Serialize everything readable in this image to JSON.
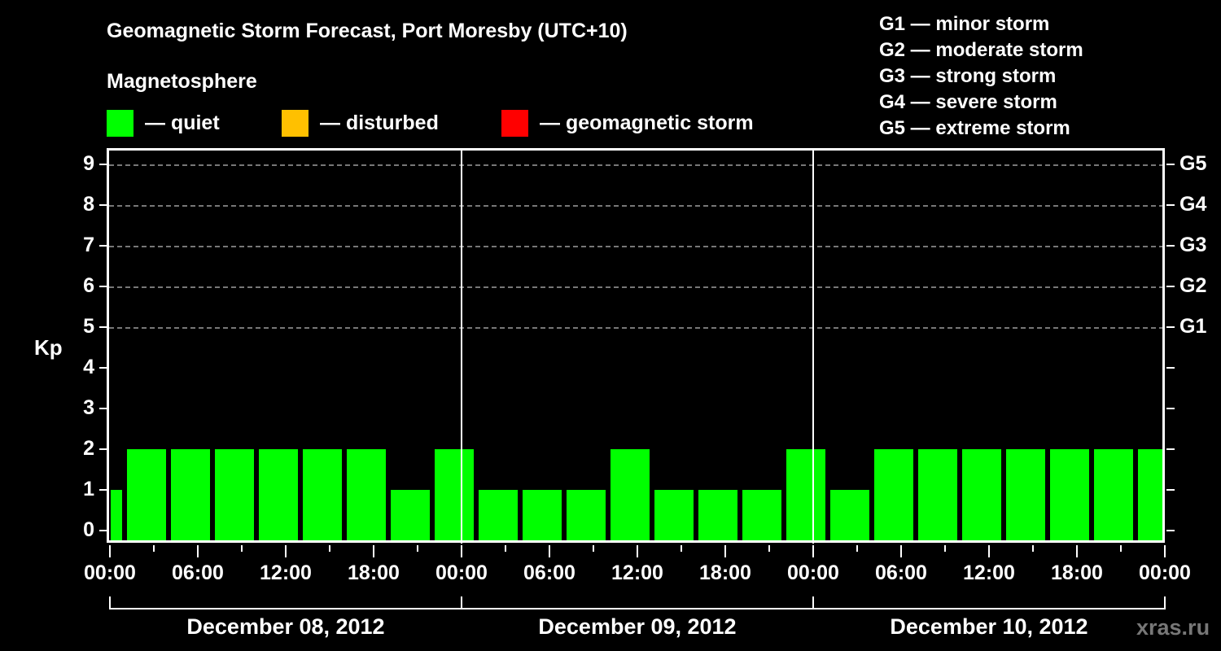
{
  "header": {
    "title": "Geomagnetic Storm Forecast, Port Moresby (UTC+10)",
    "subtitle": "Magnetosphere"
  },
  "legend": [
    {
      "label": "— quiet",
      "color": "#00ff00"
    },
    {
      "label": "— disturbed",
      "color": "#ffc000"
    },
    {
      "label": "— geomagnetic storm",
      "color": "#ff0000"
    }
  ],
  "g_scale_legend": [
    "G1 — minor storm",
    "G2 — moderate storm",
    "G3 — strong storm",
    "G4 — severe storm",
    "G5 — extreme storm"
  ],
  "axes": {
    "y_title": "Kp",
    "y_ticks": [
      "0",
      "1",
      "2",
      "3",
      "4",
      "5",
      "6",
      "7",
      "8",
      "9"
    ],
    "g_ticks": [
      {
        "label": "G1",
        "kp": 5
      },
      {
        "label": "G2",
        "kp": 6
      },
      {
        "label": "G3",
        "kp": 7
      },
      {
        "label": "G4",
        "kp": 8
      },
      {
        "label": "G5",
        "kp": 9
      }
    ],
    "x_ticks": [
      "00:00",
      "06:00",
      "12:00",
      "18:00",
      "00:00",
      "06:00",
      "12:00",
      "18:00",
      "00:00",
      "06:00",
      "12:00",
      "18:00",
      "00:00"
    ],
    "dates": [
      "December 08, 2012",
      "December 09, 2012",
      "December 10, 2012"
    ]
  },
  "watermark": "xras.ru",
  "chart_data": {
    "type": "bar",
    "title": "Geomagnetic Storm Forecast, Port Moresby (UTC+10)",
    "subtitle": "Magnetosphere",
    "xlabel": "",
    "ylabel": "Kp",
    "ylim": [
      0,
      9
    ],
    "grid": "dashed horizontal at Kp 5-9",
    "legend_position": "top",
    "legend": [
      "quiet",
      "disturbed",
      "geomagnetic storm"
    ],
    "secondary_y_labels": {
      "5": "G1",
      "6": "G2",
      "7": "G3",
      "8": "G4",
      "9": "G5"
    },
    "categories": [
      "Dec 08 00:00-01:00",
      "Dec 08 01:00-04:00",
      "Dec 08 04:00-07:00",
      "Dec 08 07:00-10:00",
      "Dec 08 10:00-13:00",
      "Dec 08 13:00-16:00",
      "Dec 08 16:00-19:00",
      "Dec 08 19:00-22:00",
      "Dec 08 22:00-Dec 09 01:00",
      "Dec 09 01:00-04:00",
      "Dec 09 04:00-07:00",
      "Dec 09 07:00-10:00",
      "Dec 09 10:00-13:00",
      "Dec 09 13:00-16:00",
      "Dec 09 16:00-19:00",
      "Dec 09 19:00-22:00",
      "Dec 09 22:00-Dec 10 01:00",
      "Dec 10 01:00-04:00",
      "Dec 10 04:00-07:00",
      "Dec 10 07:00-10:00",
      "Dec 10 10:00-13:00",
      "Dec 10 13:00-16:00",
      "Dec 10 16:00-19:00",
      "Dec 10 19:00-22:00",
      "Dec 10 22:00-24:00"
    ],
    "values": [
      1,
      2,
      2,
      2,
      2,
      2,
      2,
      1,
      2,
      1,
      1,
      1,
      2,
      1,
      1,
      1,
      2,
      1,
      2,
      2,
      2,
      2,
      2,
      2,
      2
    ],
    "status": [
      "quiet",
      "quiet",
      "quiet",
      "quiet",
      "quiet",
      "quiet",
      "quiet",
      "quiet",
      "quiet",
      "quiet",
      "quiet",
      "quiet",
      "quiet",
      "quiet",
      "quiet",
      "quiet",
      "quiet",
      "quiet",
      "quiet",
      "quiet",
      "quiet",
      "quiet",
      "quiet",
      "quiet",
      "quiet"
    ],
    "x_tick_labels": [
      "00:00",
      "06:00",
      "12:00",
      "18:00",
      "00:00",
      "06:00",
      "12:00",
      "18:00",
      "00:00",
      "06:00",
      "12:00",
      "18:00",
      "00:00"
    ],
    "date_labels": [
      "December 08, 2012",
      "December 09, 2012",
      "December 10, 2012"
    ]
  }
}
